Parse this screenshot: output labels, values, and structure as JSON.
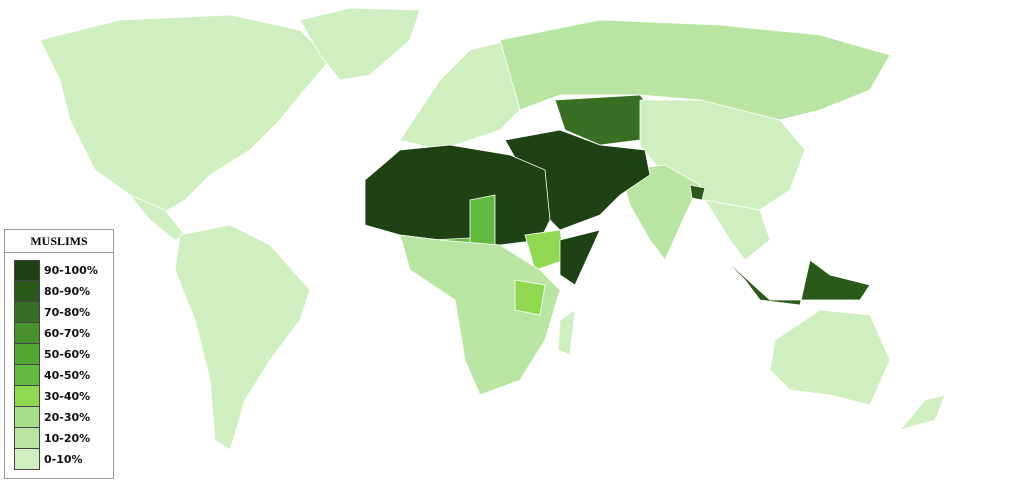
{
  "legend": {
    "title": "MUSLIMS",
    "items": [
      {
        "label": "90-100%",
        "color": "#1f4214"
      },
      {
        "label": "80-90%",
        "color": "#2a5a1a"
      },
      {
        "label": "70-80%",
        "color": "#386f22"
      },
      {
        "label": "60-70%",
        "color": "#47922b"
      },
      {
        "label": "50-60%",
        "color": "#51a832"
      },
      {
        "label": "40-50%",
        "color": "#62bb3e"
      },
      {
        "label": "30-40%",
        "color": "#8fd850"
      },
      {
        "label": "20-30%",
        "color": "#a6df8a"
      },
      {
        "label": "10-20%",
        "color": "#b8e6a2"
      },
      {
        "label": "0-10%",
        "color": "#d0efc0"
      }
    ]
  }
}
